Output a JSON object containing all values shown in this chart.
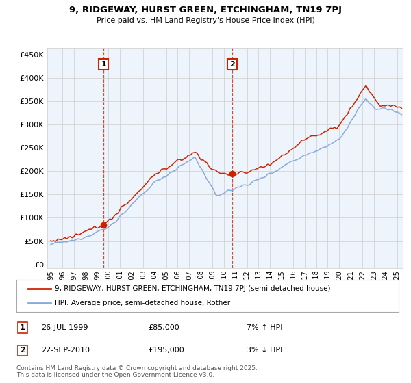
{
  "title": "9, RIDGEWAY, HURST GREEN, ETCHINGHAM, TN19 7PJ",
  "subtitle": "Price paid vs. HM Land Registry's House Price Index (HPI)",
  "yticks": [
    0,
    50000,
    100000,
    150000,
    200000,
    250000,
    300000,
    350000,
    400000,
    450000
  ],
  "ytick_labels": [
    "£0",
    "£50K",
    "£100K",
    "£150K",
    "£200K",
    "£250K",
    "£300K",
    "£350K",
    "£400K",
    "£450K"
  ],
  "ylim": [
    -8000,
    465000
  ],
  "xlim_start": 1994.7,
  "xlim_end": 2025.5,
  "xtick_years": [
    1995,
    1996,
    1997,
    1998,
    1999,
    2000,
    2001,
    2002,
    2003,
    2004,
    2005,
    2006,
    2007,
    2008,
    2009,
    2010,
    2011,
    2012,
    2013,
    2014,
    2015,
    2016,
    2017,
    2018,
    2019,
    2020,
    2021,
    2022,
    2023,
    2024,
    2025
  ],
  "sale1_x": 1999.57,
  "sale1_y": 85000,
  "sale1_label": "1",
  "sale1_date": "26-JUL-1999",
  "sale1_price": "£85,000",
  "sale1_hpi": "7% ↑ HPI",
  "sale2_x": 2010.73,
  "sale2_y": 195000,
  "sale2_label": "2",
  "sale2_date": "22-SEP-2010",
  "sale2_price": "£195,000",
  "sale2_hpi": "3% ↓ HPI",
  "legend1_label": "9, RIDGEWAY, HURST GREEN, ETCHINGHAM, TN19 7PJ (semi-detached house)",
  "legend2_label": "HPI: Average price, semi-detached house, Rother",
  "footer": "Contains HM Land Registry data © Crown copyright and database right 2025.\nThis data is licensed under the Open Government Licence v3.0.",
  "line1_color": "#cc2200",
  "line2_color": "#88aadd",
  "bg_color": "#ffffff",
  "grid_color": "#cccccc",
  "annotation_box_color": "#cc2200",
  "dashed_line_color": "#cc2200",
  "plot_bg_color": "#eef4fb"
}
